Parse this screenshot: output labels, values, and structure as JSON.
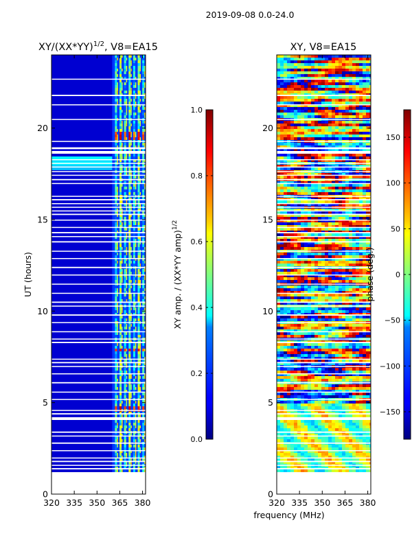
{
  "figure": {
    "suptitle": "2019-09-08 0.0-24.0",
    "shared_xlabel": "frequency (MHz)"
  },
  "colormap": "jet",
  "chart_data": [
    {
      "type": "heatmap",
      "title_prefix": "XY/(XX*YY)",
      "title_exponent": "1/2",
      "title_suffix": ", V8=EA15",
      "xlabel": "",
      "ylabel": "UT (hours)",
      "xlim": [
        320,
        382
      ],
      "ylim": [
        0,
        24
      ],
      "xticks": [
        320,
        335,
        350,
        365,
        380
      ],
      "yticks": [
        0,
        5,
        10,
        15,
        20
      ],
      "data_start_hour": 1.2,
      "active_band_mhz": [
        360,
        382
      ],
      "channel_columns_mhz": [
        362.5,
        365.5,
        368.5,
        371.5,
        374.5,
        377.5,
        380.5
      ],
      "hot_band_hours": [
        4.6,
        4.9,
        7.9,
        8.1,
        19.5,
        19.8
      ],
      "colorbar": {
        "label_prefix": "XY amp. / (XX*YY amp)",
        "label_exponent": "1/2",
        "min": 0.0,
        "max": 1.0,
        "ticks": [
          0.0,
          0.2,
          0.4,
          0.6,
          0.8,
          1.0
        ],
        "tick_labels": [
          "0.0",
          "0.2",
          "0.4",
          "0.6",
          "0.8",
          "1.0"
        ]
      }
    },
    {
      "type": "heatmap",
      "title": "XY, V8=EA15",
      "xlabel": "frequency (MHz)",
      "ylabel": "",
      "xlim": [
        320,
        382
      ],
      "ylim": [
        0,
        24
      ],
      "xticks": [
        320,
        335,
        350,
        365,
        380
      ],
      "yticks": [
        0,
        5,
        10,
        15,
        20
      ],
      "data_start_hour": 1.2,
      "colorbar": {
        "label": "phase (deg.)",
        "min": -180,
        "max": 180,
        "ticks": [
          -150,
          -100,
          -50,
          0,
          50,
          100,
          150
        ],
        "tick_labels": [
          "−150",
          "−100",
          "−50",
          "0",
          "50",
          "100",
          "150"
        ]
      }
    }
  ],
  "flagged_gaps_hours": [
    [
      1.35,
      1.42
    ],
    [
      1.55,
      1.6
    ],
    [
      1.75,
      1.82
    ],
    [
      1.95,
      2.0
    ],
    [
      2.35,
      2.4
    ],
    [
      2.75,
      2.82
    ],
    [
      3.15,
      3.2
    ],
    [
      3.35,
      3.42
    ],
    [
      4.05,
      4.2
    ],
    [
      4.35,
      4.42
    ],
    [
      4.55,
      4.6
    ],
    [
      5.15,
      5.2
    ],
    [
      5.55,
      5.6
    ],
    [
      6.05,
      6.12
    ],
    [
      6.55,
      6.6
    ],
    [
      6.95,
      7.0
    ],
    [
      7.15,
      7.22
    ],
    [
      7.35,
      7.4
    ],
    [
      8.25,
      8.32
    ],
    [
      8.45,
      8.5
    ],
    [
      8.85,
      8.9
    ],
    [
      9.35,
      9.4
    ],
    [
      9.75,
      9.82
    ],
    [
      10.25,
      10.3
    ],
    [
      10.45,
      10.52
    ],
    [
      10.95,
      11.0
    ],
    [
      11.45,
      11.5
    ],
    [
      11.95,
      12.0
    ],
    [
      12.35,
      12.42
    ],
    [
      12.85,
      12.9
    ],
    [
      13.25,
      13.3
    ],
    [
      13.75,
      13.82
    ],
    [
      14.05,
      14.1
    ],
    [
      14.25,
      14.32
    ],
    [
      14.55,
      14.6
    ],
    [
      14.95,
      15.0
    ],
    [
      15.25,
      15.32
    ],
    [
      15.45,
      15.5
    ],
    [
      15.65,
      15.7
    ],
    [
      15.85,
      15.9
    ],
    [
      16.05,
      16.12
    ],
    [
      16.25,
      16.3
    ],
    [
      16.95,
      17.0
    ],
    [
      17.15,
      17.22
    ],
    [
      17.4,
      17.45
    ],
    [
      17.6,
      17.65
    ],
    [
      17.85,
      17.9
    ],
    [
      18.05,
      18.1
    ],
    [
      18.25,
      18.3
    ],
    [
      18.6,
      18.75
    ],
    [
      18.85,
      18.95
    ],
    [
      19.25,
      19.3
    ],
    [
      20.45,
      20.5
    ],
    [
      21.25,
      21.3
    ],
    [
      21.75,
      21.82
    ],
    [
      22.65,
      22.7
    ]
  ]
}
